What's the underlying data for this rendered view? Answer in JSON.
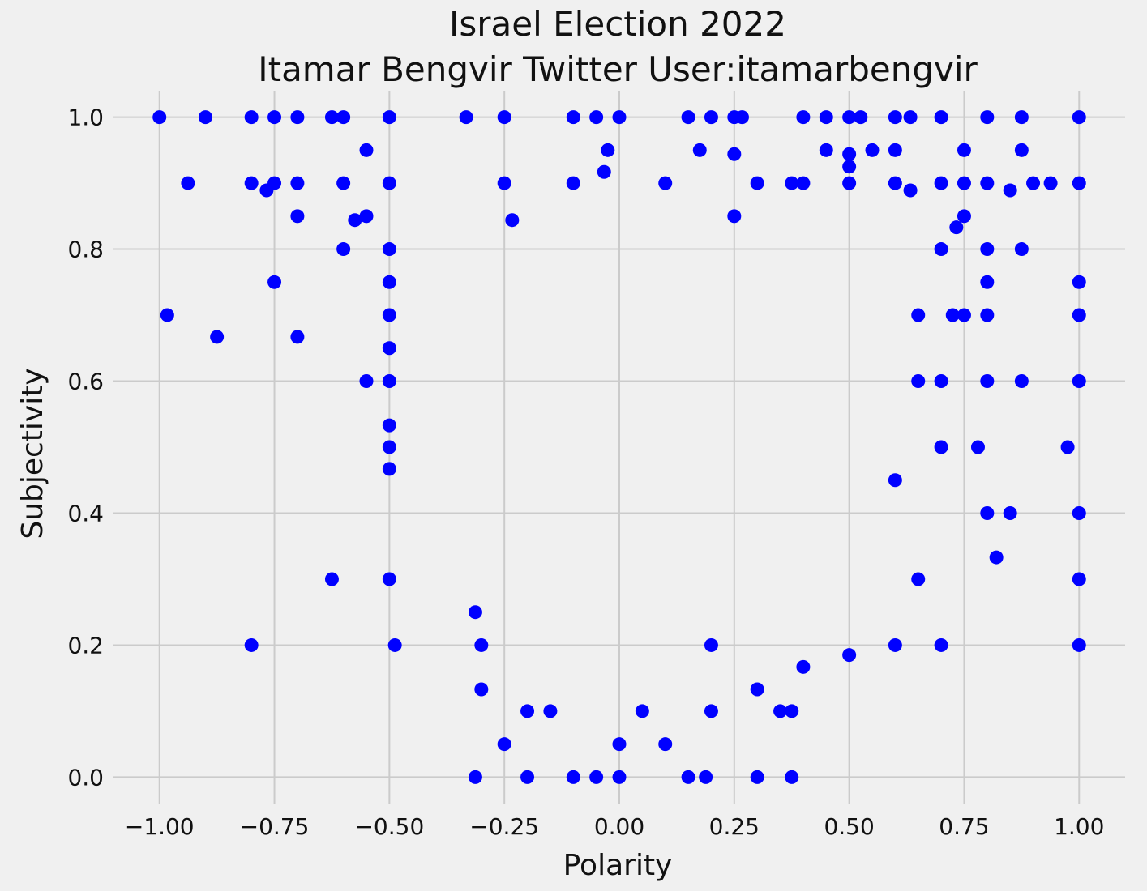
{
  "chart_data": {
    "type": "scatter",
    "title": "Israel Election 2022",
    "subtitle": "Itamar Bengvir Twitter User:itamarbengvir",
    "xlabel": "Polarity",
    "ylabel": "Subjectivity",
    "xlim": [
      -1.1,
      1.1
    ],
    "ylim": [
      -0.04,
      1.04
    ],
    "xticks": [
      -1.0,
      -0.75,
      -0.5,
      -0.25,
      0.0,
      0.25,
      0.5,
      0.75,
      1.0
    ],
    "xtick_labels": [
      "−1.00",
      "−0.75",
      "−0.50",
      "−0.25",
      "0.00",
      "0.25",
      "0.50",
      "0.75",
      "1.00"
    ],
    "yticks": [
      0.0,
      0.2,
      0.4,
      0.6,
      0.8,
      1.0
    ],
    "ytick_labels": [
      "0.0",
      "0.2",
      "0.4",
      "0.6",
      "0.8",
      "1.0"
    ],
    "grid": true,
    "point_color": "#0000ff",
    "background": "#f0f0f0",
    "series": [
      {
        "points": [
          [
            -1.0,
            1.0
          ],
          [
            -0.9,
            1.0
          ],
          [
            -0.8,
            1.0
          ],
          [
            -0.75,
            1.0
          ],
          [
            -0.7,
            1.0
          ],
          [
            -0.625,
            1.0
          ],
          [
            -0.6,
            1.0
          ],
          [
            -0.5,
            1.0
          ],
          [
            -0.333,
            1.0
          ],
          [
            -0.25,
            1.0
          ],
          [
            -0.1,
            1.0
          ],
          [
            -0.05,
            1.0
          ],
          [
            0.0,
            1.0
          ],
          [
            0.15,
            1.0
          ],
          [
            0.2,
            1.0
          ],
          [
            0.25,
            1.0
          ],
          [
            0.267,
            1.0
          ],
          [
            0.4,
            1.0
          ],
          [
            0.45,
            1.0
          ],
          [
            0.5,
            1.0
          ],
          [
            0.525,
            1.0
          ],
          [
            0.6,
            1.0
          ],
          [
            0.633,
            1.0
          ],
          [
            0.7,
            1.0
          ],
          [
            0.8,
            1.0
          ],
          [
            0.875,
            1.0
          ],
          [
            1.0,
            1.0
          ],
          [
            -0.55,
            0.95
          ],
          [
            -0.025,
            0.95
          ],
          [
            0.175,
            0.95
          ],
          [
            0.25,
            0.944
          ],
          [
            0.45,
            0.95
          ],
          [
            0.5,
            0.944
          ],
          [
            0.55,
            0.95
          ],
          [
            0.6,
            0.95
          ],
          [
            0.75,
            0.95
          ],
          [
            0.875,
            0.95
          ],
          [
            0.5,
            0.925
          ],
          [
            -0.033,
            0.917
          ],
          [
            -0.938,
            0.9
          ],
          [
            -0.8,
            0.9
          ],
          [
            -0.75,
            0.9
          ],
          [
            -0.767,
            0.889
          ],
          [
            -0.7,
            0.9
          ],
          [
            -0.6,
            0.9
          ],
          [
            -0.5,
            0.9
          ],
          [
            -0.25,
            0.9
          ],
          [
            -0.1,
            0.9
          ],
          [
            0.1,
            0.9
          ],
          [
            0.3,
            0.9
          ],
          [
            0.375,
            0.9
          ],
          [
            0.4,
            0.9
          ],
          [
            0.5,
            0.9
          ],
          [
            0.6,
            0.9
          ],
          [
            0.7,
            0.9
          ],
          [
            0.75,
            0.9
          ],
          [
            0.8,
            0.9
          ],
          [
            0.85,
            0.889
          ],
          [
            0.9,
            0.9
          ],
          [
            0.938,
            0.9
          ],
          [
            1.0,
            0.9
          ],
          [
            0.633,
            0.889
          ],
          [
            -0.7,
            0.85
          ],
          [
            -0.575,
            0.844
          ],
          [
            -0.55,
            0.85
          ],
          [
            -0.233,
            0.844
          ],
          [
            0.25,
            0.85
          ],
          [
            0.75,
            0.85
          ],
          [
            -0.6,
            0.8
          ],
          [
            -0.5,
            0.8
          ],
          [
            0.8,
            0.8
          ],
          [
            0.875,
            0.8
          ],
          [
            -0.983,
            0.7
          ],
          [
            -0.875,
            0.667
          ],
          [
            -0.75,
            0.75
          ],
          [
            -0.7,
            0.667
          ],
          [
            -0.5,
            0.75
          ],
          [
            -0.5,
            0.7
          ],
          [
            -0.5,
            0.65
          ],
          [
            -0.55,
            0.6
          ],
          [
            -0.5,
            0.6
          ],
          [
            0.8,
            0.75
          ],
          [
            0.8,
            0.7
          ],
          [
            1.0,
            0.75
          ],
          [
            1.0,
            0.7
          ],
          [
            0.7,
            0.6
          ],
          [
            0.8,
            0.6
          ],
          [
            0.875,
            0.6
          ],
          [
            1.0,
            0.6
          ],
          [
            0.65,
            0.6
          ],
          [
            0.7,
            0.5
          ],
          [
            0.78,
            0.5
          ],
          [
            0.975,
            0.5
          ],
          [
            -0.5,
            0.533
          ],
          [
            -0.5,
            0.5
          ],
          [
            -0.5,
            0.467
          ],
          [
            0.6,
            0.45
          ],
          [
            0.8,
            0.4
          ],
          [
            0.85,
            0.4
          ],
          [
            1.0,
            0.4
          ],
          [
            0.82,
            0.333
          ],
          [
            -0.625,
            0.3
          ],
          [
            -0.5,
            0.3
          ],
          [
            0.65,
            0.3
          ],
          [
            1.0,
            0.3
          ],
          [
            -0.8,
            0.2
          ],
          [
            -0.488,
            0.2
          ],
          [
            0.5,
            0.185
          ],
          [
            0.6,
            0.2
          ],
          [
            0.7,
            0.2
          ],
          [
            1.0,
            0.2
          ],
          [
            -0.313,
            0.0
          ],
          [
            -0.2,
            0.0
          ],
          [
            -0.1,
            0.0
          ],
          [
            -0.05,
            0.0
          ],
          [
            0.0,
            0.0
          ],
          [
            0.15,
            0.0
          ],
          [
            0.188,
            0.0
          ],
          [
            0.3,
            0.0
          ],
          [
            0.375,
            0.0
          ],
          [
            -0.313,
            0.25
          ],
          [
            -0.3,
            0.2
          ],
          [
            -0.3,
            0.133
          ],
          [
            -0.25,
            0.05
          ],
          [
            0.3,
            0.133
          ],
          [
            0.375,
            0.1
          ],
          [
            0.4,
            0.167
          ],
          [
            0.35,
            0.1
          ],
          [
            0.2,
            0.1
          ],
          [
            0.2,
            0.2
          ],
          [
            0.1,
            0.05
          ],
          [
            0.05,
            0.1
          ],
          [
            0.0,
            0.05
          ],
          [
            -0.2,
            0.1
          ],
          [
            -0.15,
            0.1
          ],
          [
            0.65,
            0.7
          ],
          [
            0.7,
            0.8
          ],
          [
            0.75,
            0.7
          ],
          [
            0.733,
            0.833
          ],
          [
            0.725,
            0.7
          ]
        ]
      }
    ]
  }
}
